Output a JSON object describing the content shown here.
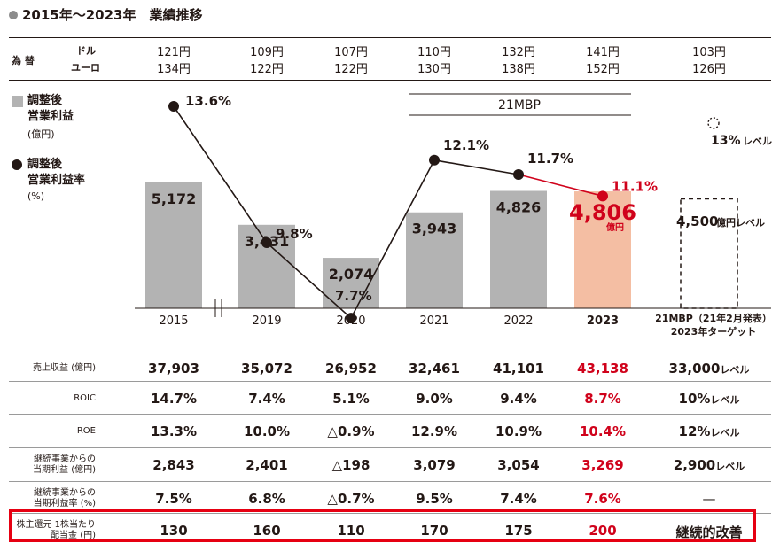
{
  "title": "2015年〜2023年　業績推移",
  "fx": {
    "label": "為 替",
    "dollar_label": "ドル",
    "euro_label": "ユーロ",
    "dollar": [
      "121円",
      "109円",
      "107円",
      "110円",
      "132円",
      "141円",
      "103円"
    ],
    "euro": [
      "134円",
      "122円",
      "122円",
      "130円",
      "138円",
      "152円",
      "126円"
    ]
  },
  "legend": {
    "bar_title_1": "調整後",
    "bar_title_2": "営業利益",
    "bar_unit": "(億円)",
    "line_title_1": "調整後",
    "line_title_2": "営業利益率",
    "line_unit": "(%)"
  },
  "mbp_label": "21MBP",
  "chart_data": {
    "type": "bar",
    "categories": [
      "2015",
      "2019",
      "2020",
      "2021",
      "2022",
      "2023",
      "21MBP(21年2月発表)\n2023年ターゲット"
    ],
    "series": [
      {
        "name": "調整後 営業利益",
        "unit": "億円",
        "values": [
          5172,
          3431,
          2074,
          3943,
          4826,
          4806,
          4500
        ]
      },
      {
        "name": "調整後 営業利益率",
        "unit": "%",
        "values": [
          13.6,
          9.8,
          7.7,
          12.1,
          11.7,
          11.1,
          13
        ]
      }
    ],
    "bar_labels": [
      "5,172",
      "3,431",
      "2,074",
      "3,943",
      "4,826",
      "4,806",
      ""
    ],
    "line_labels": [
      "13.6%",
      "9.8%",
      "7.7%",
      "12.1%",
      "11.7%",
      "11.1%",
      ""
    ],
    "target_bar_label": "4,500",
    "target_bar_unit": "億円レベル",
    "target_line_label": "13%",
    "target_line_unit": "レベル",
    "highlight_unit": "億円",
    "x_labels": [
      "2015",
      "2019",
      "2020",
      "2021",
      "2022",
      "2023"
    ],
    "target_x_label_1": "21MBP（21年2月発表）",
    "target_x_label_2": "2023年ターゲット",
    "colors": {
      "bar": "#b3b3b3",
      "bar_highlight": "#f4bea3",
      "line": "#231815",
      "highlight": "#d0021b"
    }
  },
  "table": {
    "rows": [
      {
        "label": [
          "売上収益 (億円)"
        ],
        "values": [
          "37,903",
          "35,072",
          "26,952",
          "32,461",
          "41,101",
          "43,138",
          "33,000"
        ],
        "target_unit": "レベル"
      },
      {
        "label": [
          "ROIC"
        ],
        "values": [
          "14.7%",
          "7.4%",
          "5.1%",
          "9.0%",
          "9.4%",
          "8.7%",
          "10%"
        ],
        "target_unit": "レベル"
      },
      {
        "label": [
          "ROE"
        ],
        "values": [
          "13.3%",
          "10.0%",
          "△0.9%",
          "12.9%",
          "10.9%",
          "10.4%",
          "12%"
        ],
        "target_unit": "レベル"
      },
      {
        "label": [
          "継続事業からの",
          "当期利益 (億円)"
        ],
        "values": [
          "2,843",
          "2,401",
          "△198",
          "3,079",
          "3,054",
          "3,269",
          "2,900"
        ],
        "target_unit": "レベル"
      },
      {
        "label": [
          "継続事業からの",
          "当期利益率 (%)"
        ],
        "values": [
          "7.5%",
          "6.8%",
          "△0.7%",
          "9.5%",
          "7.4%",
          "7.6%",
          "—"
        ],
        "target_unit": ""
      },
      {
        "label": [
          "株主還元 1株当たり",
          "配当金 (円)"
        ],
        "values": [
          "130",
          "160",
          "110",
          "170",
          "175",
          "200",
          "継続的改善"
        ],
        "target_unit": ""
      }
    ]
  }
}
